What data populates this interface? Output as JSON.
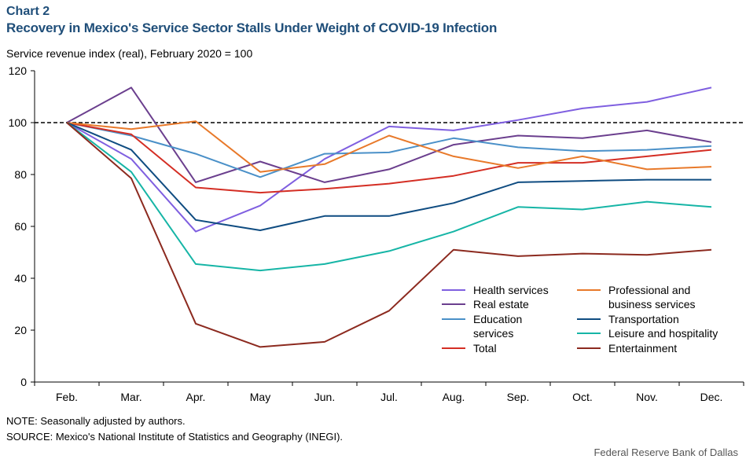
{
  "header": {
    "chart_number": "Chart 2",
    "title": "Recovery in Mexico's Service Sector Stalls Under Weight of COVID-19 Infection",
    "unit_label": "Service revenue index (real), February 2020 = 100"
  },
  "footer": {
    "note": "NOTE: Seasonally adjusted by authors.",
    "source": "SOURCE: Mexico's National Institute of Statistics and Geography (INEGI).",
    "credit": "Federal Reserve Bank of Dallas"
  },
  "chart_data": {
    "type": "line",
    "title": "Recovery in Mexico's Service Sector Stalls Under Weight of COVID-19 Infection",
    "ylabel": "Service revenue index (real), February 2020 = 100",
    "categories": [
      "Feb.",
      "Mar.",
      "Apr.",
      "May",
      "Jun.",
      "Jul.",
      "Aug.",
      "Sep.",
      "Oct.",
      "Nov.",
      "Dec."
    ],
    "ylim": [
      0,
      120
    ],
    "yticks": [
      0,
      20,
      40,
      60,
      80,
      100,
      120
    ],
    "reference_line": 100,
    "grid": false,
    "legend_position": "bottom-right",
    "series": [
      {
        "name": "Health services",
        "color": "#7f5fe0",
        "values": [
          100,
          86,
          58,
          68,
          86,
          98.5,
          97,
          101,
          105.5,
          108,
          113.5
        ]
      },
      {
        "name": "Real estate",
        "color": "#6b3f8e",
        "values": [
          100,
          113.5,
          77,
          85,
          77,
          82,
          91.5,
          95,
          94,
          97,
          92.5
        ]
      },
      {
        "name": "Education services",
        "color": "#4a90c8",
        "values": [
          100,
          95,
          88,
          79,
          88,
          88.5,
          94,
          90.5,
          89,
          89.5,
          91
        ]
      },
      {
        "name": "Total",
        "color": "#d42e24",
        "values": [
          100,
          95.5,
          75,
          73,
          74.5,
          76.5,
          79.5,
          84.5,
          84.5,
          87,
          89.5
        ]
      },
      {
        "name": "Professional and business services",
        "color": "#e8792a",
        "values": [
          100,
          97.5,
          100.5,
          81,
          84,
          95,
          87,
          82.5,
          87,
          82,
          83
        ]
      },
      {
        "name": "Transportation",
        "color": "#0f4c81",
        "values": [
          100,
          89.5,
          62.5,
          58.5,
          64,
          64,
          69,
          77,
          77.5,
          78,
          78
        ]
      },
      {
        "name": "Leisure and hospitality",
        "color": "#16b5a6",
        "values": [
          100,
          81,
          45.5,
          43,
          45.5,
          50.5,
          58,
          67.5,
          66.5,
          69.5,
          67.5
        ]
      },
      {
        "name": "Entertainment",
        "color": "#8c2a1f",
        "values": [
          100,
          78.5,
          22.5,
          13.5,
          15.5,
          27.5,
          51,
          48.5,
          49.5,
          49,
          51
        ]
      }
    ],
    "legend": [
      {
        "text": "Health services",
        "series": 0
      },
      {
        "text": "Real estate",
        "series": 1
      },
      {
        "text": "Education",
        "series": 2
      },
      {
        "text": "services",
        "series": -1
      },
      {
        "text": "Total",
        "series": 3
      },
      {
        "text": "Professional and",
        "series": 4
      },
      {
        "text": "business services",
        "series": -1
      },
      {
        "text": "Transportation",
        "series": 5
      },
      {
        "text": "Leisure and hospitality",
        "series": 6
      },
      {
        "text": "Entertainment",
        "series": 7
      }
    ]
  }
}
